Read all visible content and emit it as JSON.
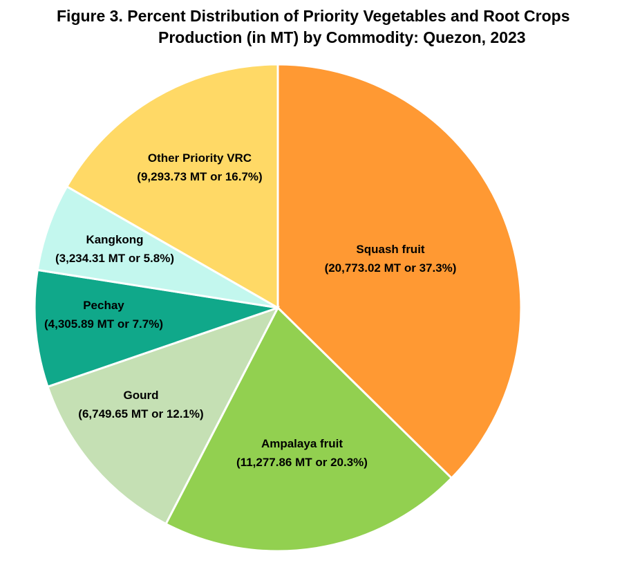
{
  "chart_data": {
    "type": "pie",
    "title_line1": "Figure 3. Percent Distribution of Priority Vegetables and Root Crops",
    "title_line2": "Production (in MT) by Commodity: Quezon, 2023",
    "slices": [
      {
        "name": "Squash fruit",
        "value": 20773.02,
        "percent": 37.3,
        "detail": "(20,773.02 MT or 37.3%)",
        "color": "#FF9933"
      },
      {
        "name": "Ampalaya fruit",
        "value": 11277.86,
        "percent": 20.3,
        "detail": "(11,277.86 MT or 20.3%)",
        "color": "#92D050"
      },
      {
        "name": "Gourd",
        "value": 6749.65,
        "percent": 12.1,
        "detail": "(6,749.65 MT or 12.1%)",
        "color": "#C5E0B4"
      },
      {
        "name": "Pechay",
        "value": 4305.89,
        "percent": 7.7,
        "detail": "(4,305.89 MT or 7.7%)",
        "color": "#10A88A"
      },
      {
        "name": "Kangkong",
        "value": 3234.31,
        "percent": 5.8,
        "detail": "(3,234.31 MT or 5.8%)",
        "color": "#C3F7EE"
      },
      {
        "name": "Other Priority VRC",
        "value": 9293.73,
        "percent": 16.7,
        "detail": "(9,293.73 MT or 16.7%)",
        "color": "#FFD966"
      }
    ]
  }
}
